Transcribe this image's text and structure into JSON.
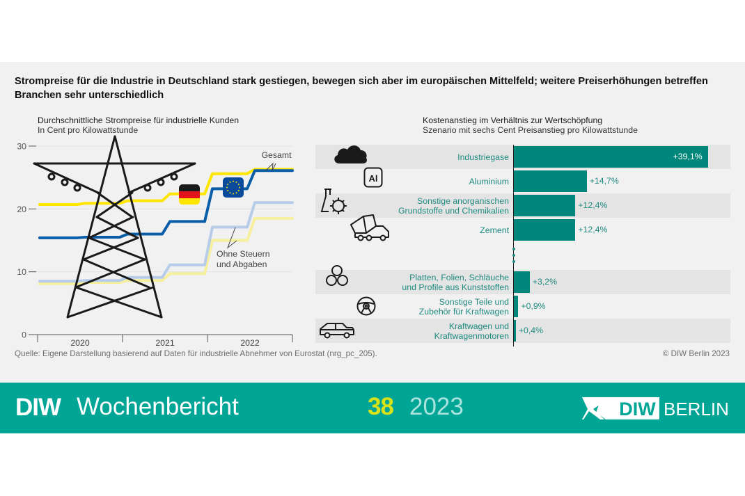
{
  "headline": "Strompreise für die Industrie in Deutschland stark gestiegen, bewegen sich aber im europäischen Mittelfeld; weitere Preiserhöhungen betreffen Branchen sehr unterschiedlich",
  "colors": {
    "panel_bg": "#f1f1f1",
    "germany_total": "#ffe600",
    "eu_total": "#0a5ea8",
    "eu_excl_taxes": "#b7cce8",
    "germany_excl_taxes": "#f6ef9c",
    "bar": "#00877c",
    "label_teal": "#1e8a80",
    "banner": "#00a596",
    "banner_number": "#d7e21a"
  },
  "chart_data": [
    {
      "type": "line",
      "title": "Durchschnittliche Strompreise für industrielle Kunden",
      "subtitle": "In Cent pro Kilowattstunde",
      "xlabel": "",
      "ylabel": "In Cent pro Kilowattstunde",
      "x": [
        "2020-S1",
        "2020-S2",
        "2021-S1",
        "2021-S2",
        "2022-S1",
        "2022-S2"
      ],
      "x_tick_labels": [
        "2020",
        "2021",
        "2022"
      ],
      "y_ticks": [
        0,
        10,
        20,
        30
      ],
      "y_tick_labels": [
        "0",
        "10",
        "20",
        "30"
      ],
      "ylim": [
        0,
        30
      ],
      "grid": true,
      "series": [
        {
          "name": "Deutschland Gesamt",
          "color": "#ffe600",
          "values": [
            20.7,
            20.9,
            21.3,
            22.4,
            25.6,
            26.3
          ]
        },
        {
          "name": "EU Gesamt",
          "color": "#0a5ea8",
          "values": [
            15.4,
            15.5,
            16.0,
            18.0,
            23.2,
            26.1
          ]
        },
        {
          "name": "EU ohne Steuern und Abgaben",
          "color": "#b7cce8",
          "values": [
            8.5,
            8.6,
            9.1,
            11.1,
            17.1,
            21.0
          ]
        },
        {
          "name": "Deutschland ohne Steuern und Abgaben",
          "color": "#f6ef9c",
          "values": [
            8.1,
            8.3,
            8.6,
            9.7,
            15.0,
            18.5
          ]
        }
      ],
      "annotations": [
        "Gesamt",
        "Ohne Steuern",
        "und Abgaben"
      ],
      "legend_markers": [
        "germany-flag",
        "eu-flag"
      ]
    },
    {
      "type": "bar",
      "orientation": "horizontal",
      "title": "Kostenanstieg im Verhältnis zur Wertschöpfung",
      "subtitle": "Szenario mit sechs Cent Preisanstieg pro Kilowattstunde",
      "unit": "%",
      "xlim": [
        0,
        40
      ],
      "categories": [
        [
          "Industriegase"
        ],
        [
          "Aluminium"
        ],
        [
          "Sonstige anorganischen",
          "Grundstoffe und Chemikalien"
        ],
        [
          "Zement"
        ],
        [
          "Platten, Folien, Schläuche",
          "und Profile aus Kunststoffen"
        ],
        [
          "Sonstige Teile und",
          "Zubehör für Kraftwagen"
        ],
        [
          "Kraftwagen und",
          "Kraftwagenmotoren"
        ]
      ],
      "values": [
        39.1,
        14.7,
        12.4,
        12.4,
        3.2,
        0.9,
        0.4
      ],
      "value_labels": [
        "+39,1%",
        "+14,7%",
        "+12,4%",
        "+12,4%",
        "+3,2%",
        "+0,9%",
        "+0,4%"
      ],
      "icons": [
        "cloud-icon",
        "aluminium-icon",
        "chemistry-flask-icon",
        "cement-mixer-truck-icon",
        "pipes-icon",
        "steering-wheel-icon",
        "car-icon"
      ],
      "ellipsis": "⋮"
    }
  ],
  "aluminium_symbol": "Al",
  "footer": {
    "source": "Quelle: Eigene Darstellung basierend auf Daten für industrielle Abnehmer von Eurostat (nrg_pc_205).",
    "copyright": "© DIW Berlin 2023"
  },
  "banner": {
    "brand_bold": "DIW",
    "publication": "Wochenbericht",
    "issue": "38",
    "year": "2023",
    "logo_text_bold": "DIW",
    "logo_text": "BERLIN"
  }
}
